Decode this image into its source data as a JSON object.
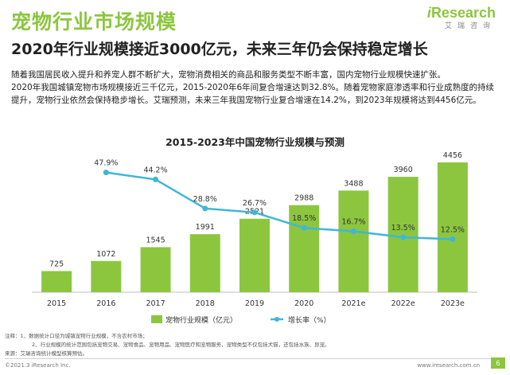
{
  "header": {
    "title": "宠物行业市场规模",
    "subtitle": "2020年行业规模接近3000亿元，未来三年仍会保持稳定增长"
  },
  "logo": {
    "main_i": "i",
    "main_rest": "Research",
    "sub": "艾瑞咨询"
  },
  "paragraph": [
    "随着我国居民收入提升和养宠人群不断扩大，宠物消费相关的商品和服务类型不断丰富，国内宠物行业规模快速扩张。",
    "2020年我国城镇宠物市场规模接近三千亿元，2015-2020年6年间复合增速达到32.8%。随着宠物家庭渗透率和行业成熟度的持续提升，宠物行业依然会保持稳步增长。艾瑞预测，未来三年我国宠物行业复合增速在14.2%，到2023年规模将达到4456亿元。"
  ],
  "chart_data": {
    "type": "bar",
    "title": "2015-2023年中国宠物行业规模与预测",
    "categories": [
      "2015",
      "2016",
      "2017",
      "2018",
      "2019",
      "2020",
      "2021e",
      "2022e",
      "2023e"
    ],
    "series": [
      {
        "name": "宠物行业规模（亿元）",
        "type": "bar",
        "values": [
          725,
          1072,
          1545,
          1991,
          2521,
          2988,
          3488,
          3960,
          4456
        ]
      },
      {
        "name": "增长率（%）",
        "type": "line",
        "values": [
          null,
          47.9,
          44.2,
          28.8,
          26.7,
          18.5,
          16.7,
          13.5,
          12.5
        ],
        "labels": [
          "",
          "47.9%",
          "44.2%",
          "28.8%",
          "26.7%",
          "18.5%",
          "16.7%",
          "13.5%",
          "12.5%"
        ]
      }
    ],
    "bar_ylim": [
      0,
      4700
    ],
    "line_ylim": [
      0,
      60
    ],
    "legend_placement": "bottom",
    "grid": false,
    "colors": {
      "bar": "#8cc63f",
      "line": "#3fb6d9"
    }
  },
  "notes": {
    "line1": "注释：1、数据统计口径为城镇宠物行业规模，不含农村市场；",
    "line2": "2、行业规模的统计范围包括宠物交易、宠物食品、宠物用品、宠物医疗和宠物服务，宠物类型不仅包括犬猫，还包括水族、异宠。",
    "line3": "来源：艾瑞咨询统计模型核算预估。"
  },
  "footer": {
    "copyright": "©2021.3 iResearch Inc.",
    "url": "www.iresearch.com.cn",
    "page": "6"
  },
  "theme": {
    "accent": "#8cc63f",
    "line": "#3fb6d9"
  }
}
